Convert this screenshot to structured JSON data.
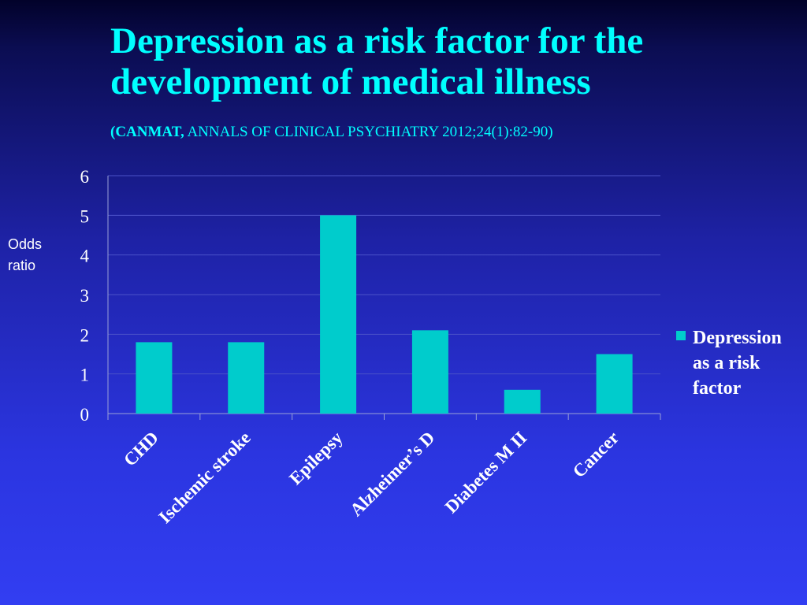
{
  "slide": {
    "title": "Depression as a risk factor for the development of medical illness",
    "citation_bold": "(CANMAT,",
    "citation_rest": " ANNALS OF CLINICAL PSYCHIATRY 2012;24(1):82-90)",
    "ylabel_line1": "Odds",
    "ylabel_line2": "ratio"
  },
  "colors": {
    "bar": "#00cccc",
    "title": "#00ffff",
    "text": "#ffffff"
  },
  "chart_data": {
    "type": "bar",
    "title": "Depression as a risk factor for the development of medical illness",
    "categories": [
      "CHD",
      "Ischemic stroke",
      "Epilepsy",
      "Alzheimer’s  D",
      "Diabetes M II",
      "Cancer"
    ],
    "series": [
      {
        "name": "Depression as a risk factor",
        "values": [
          1.8,
          1.8,
          5,
          2.1,
          0.6,
          1.5
        ]
      }
    ],
    "yticks": [
      "0",
      "1",
      "2",
      "3",
      "4",
      "5",
      "6"
    ],
    "xlabel": "",
    "ylabel": "Odds ratio",
    "ylim": [
      0,
      6
    ],
    "grid": true,
    "legend": "right",
    "legend_lines": [
      "Depression",
      "as a risk",
      "factor"
    ]
  }
}
